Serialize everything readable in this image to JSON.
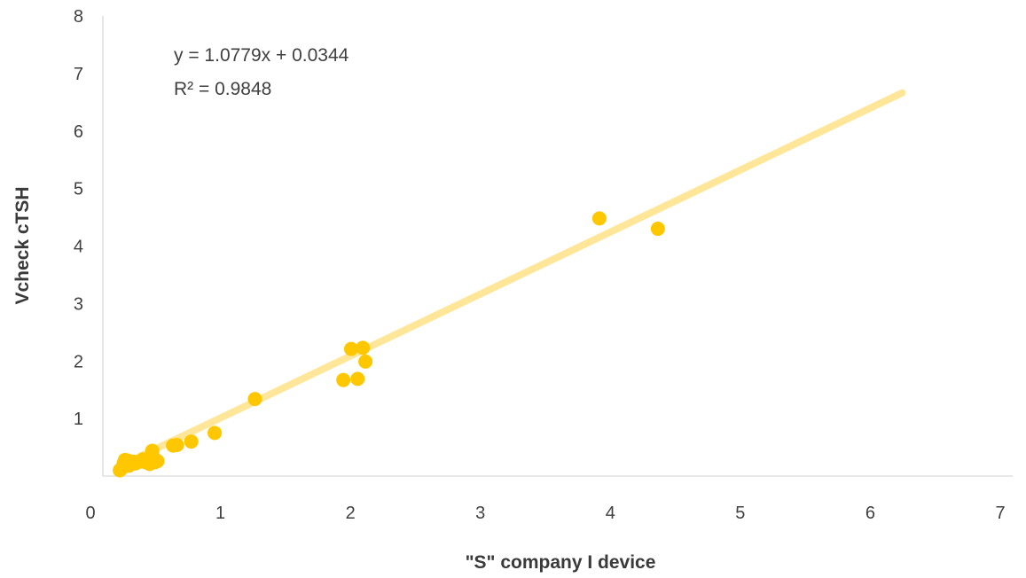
{
  "chart_data": {
    "type": "scatter",
    "title": "",
    "xlabel": "\"S\" company I device",
    "ylabel": "Vcheck cTSH",
    "xlim": [
      0,
      7
    ],
    "ylim": [
      0,
      8
    ],
    "x_ticks": [
      "0",
      "1",
      "2",
      "3",
      "4",
      "5",
      "6",
      "7"
    ],
    "y_ticks": [
      "1",
      "2",
      "3",
      "4",
      "5",
      "6",
      "7",
      "8"
    ],
    "grid": false,
    "legend": "none",
    "point_color": "#FFC700",
    "trendline_color": "#FFE699",
    "trendline": {
      "slope": 1.0779,
      "intercept": 0.0344,
      "x_range": [
        0.13,
        6.15
      ],
      "equation_label": "y = 1.0779x + 0.0344",
      "r2_label": "R² = 0.9848"
    },
    "points": [
      {
        "x": 0.13,
        "y": 0.1
      },
      {
        "x": 0.14,
        "y": 0.12
      },
      {
        "x": 0.15,
        "y": 0.15
      },
      {
        "x": 0.16,
        "y": 0.22
      },
      {
        "x": 0.17,
        "y": 0.28
      },
      {
        "x": 0.18,
        "y": 0.2
      },
      {
        "x": 0.19,
        "y": 0.27
      },
      {
        "x": 0.2,
        "y": 0.18
      },
      {
        "x": 0.21,
        "y": 0.24
      },
      {
        "x": 0.23,
        "y": 0.25
      },
      {
        "x": 0.25,
        "y": 0.22
      },
      {
        "x": 0.28,
        "y": 0.25
      },
      {
        "x": 0.31,
        "y": 0.29
      },
      {
        "x": 0.33,
        "y": 0.24
      },
      {
        "x": 0.36,
        "y": 0.21
      },
      {
        "x": 0.38,
        "y": 0.44
      },
      {
        "x": 0.39,
        "y": 0.32
      },
      {
        "x": 0.4,
        "y": 0.24
      },
      {
        "x": 0.42,
        "y": 0.26
      },
      {
        "x": 0.54,
        "y": 0.53
      },
      {
        "x": 0.57,
        "y": 0.54
      },
      {
        "x": 0.68,
        "y": 0.6
      },
      {
        "x": 0.86,
        "y": 0.75
      },
      {
        "x": 1.17,
        "y": 1.34
      },
      {
        "x": 1.85,
        "y": 1.67
      },
      {
        "x": 1.91,
        "y": 2.21
      },
      {
        "x": 1.96,
        "y": 1.69
      },
      {
        "x": 2.0,
        "y": 2.23
      },
      {
        "x": 2.02,
        "y": 1.99
      },
      {
        "x": 3.82,
        "y": 4.48
      },
      {
        "x": 4.27,
        "y": 4.3
      }
    ]
  }
}
